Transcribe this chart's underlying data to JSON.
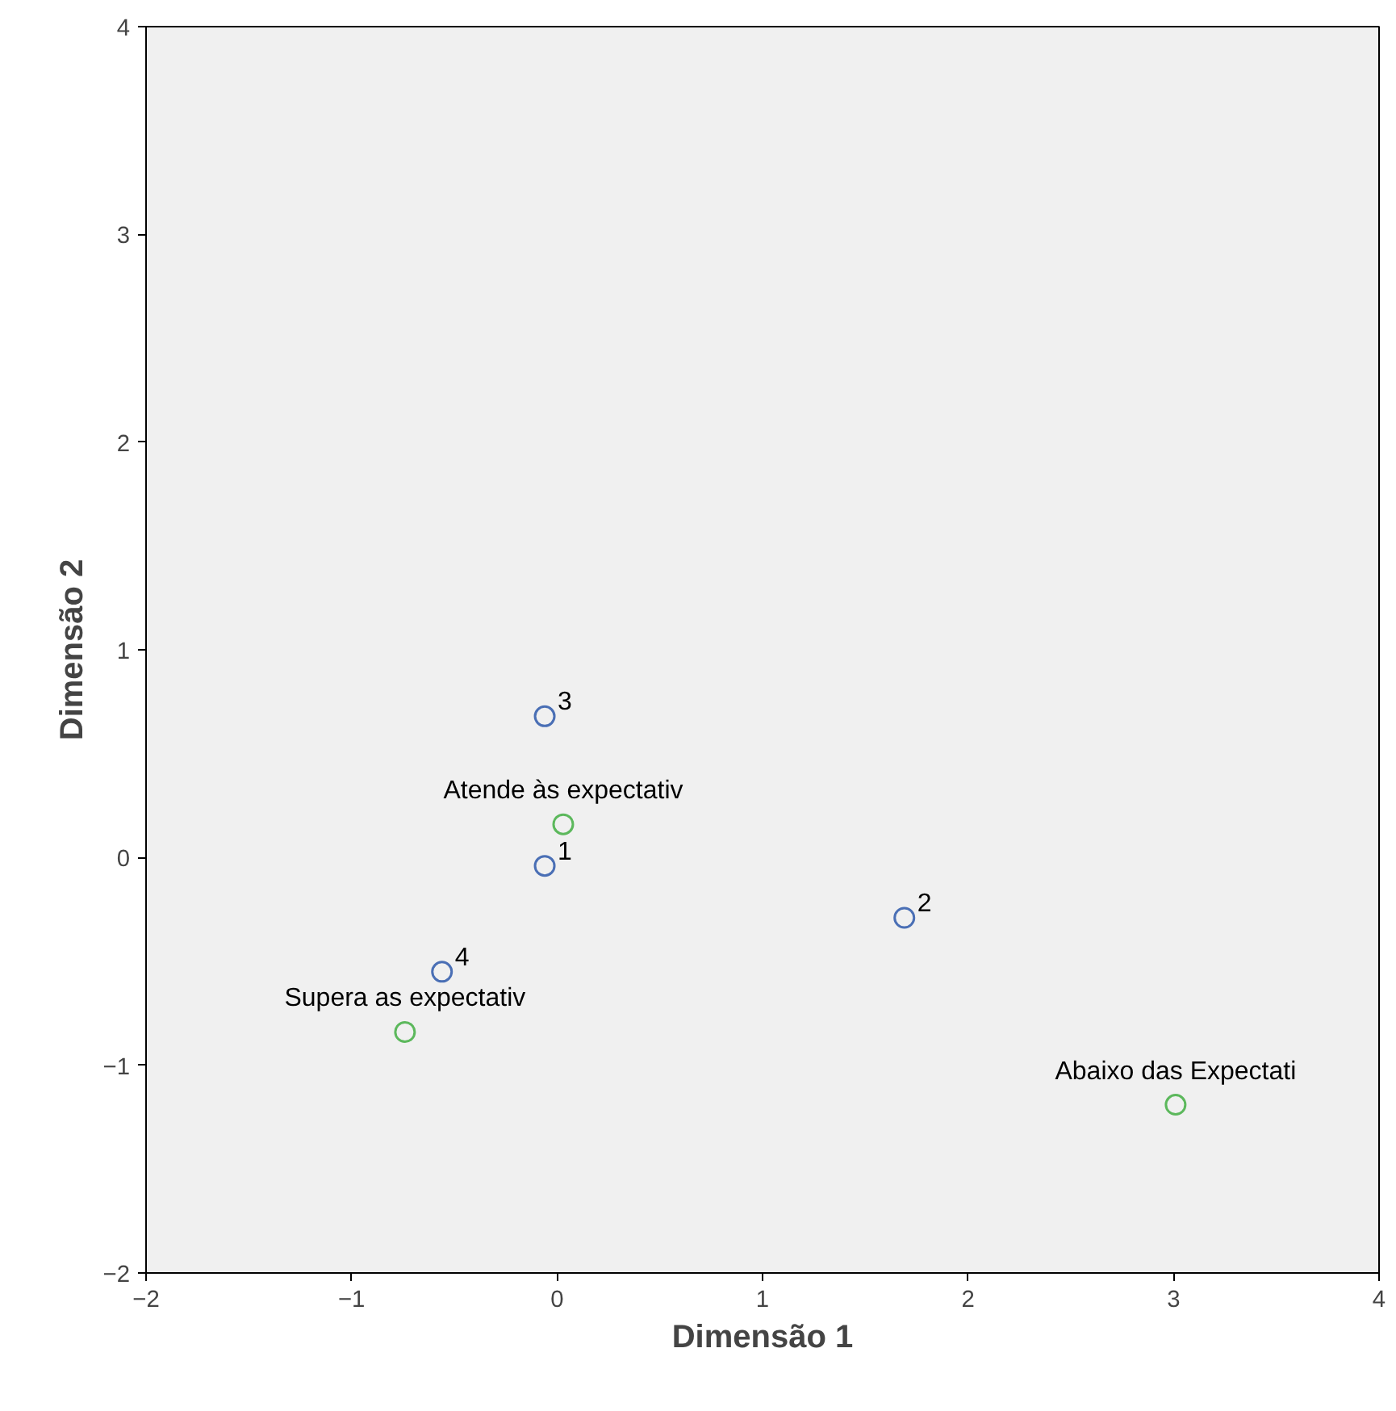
{
  "chart_data": {
    "type": "scatter",
    "xlabel": "Dimensão 1",
    "ylabel": "Dimensão 2",
    "xlim": [
      -2,
      4
    ],
    "ylim": [
      -2,
      4
    ],
    "xticks": [
      -2,
      -1,
      0,
      1,
      2,
      3,
      4
    ],
    "yticks": [
      -2,
      -1,
      0,
      1,
      2,
      3,
      4
    ],
    "grid": false,
    "marker": "circle",
    "series": [
      {
        "color": "#4a6fb5",
        "x": [
          -0.06,
          1.69,
          -0.06,
          -0.56
        ],
        "values": [
          -0.04,
          -0.29,
          0.68,
          -0.55
        ]
      },
      {
        "color": "#5cb85c",
        "x": [
          3.01,
          0.03,
          -0.74
        ],
        "values": [
          -1.19,
          0.16,
          -0.84
        ]
      }
    ],
    "annotations": [
      {
        "text": "1",
        "x": -0.06,
        "y": -0.04
      },
      {
        "text": "2",
        "x": 1.69,
        "y": -0.29
      },
      {
        "text": "3",
        "x": -0.06,
        "y": 0.68
      },
      {
        "text": "4",
        "x": -0.56,
        "y": -0.55
      },
      {
        "text": "Abaixo das Expectati",
        "x": 3.01,
        "y": -1.19
      },
      {
        "text": "Atende às expectativ",
        "x": 0.03,
        "y": 0.16
      },
      {
        "text": "Supera as expectativ",
        "x": -0.74,
        "y": -0.84
      }
    ]
  }
}
